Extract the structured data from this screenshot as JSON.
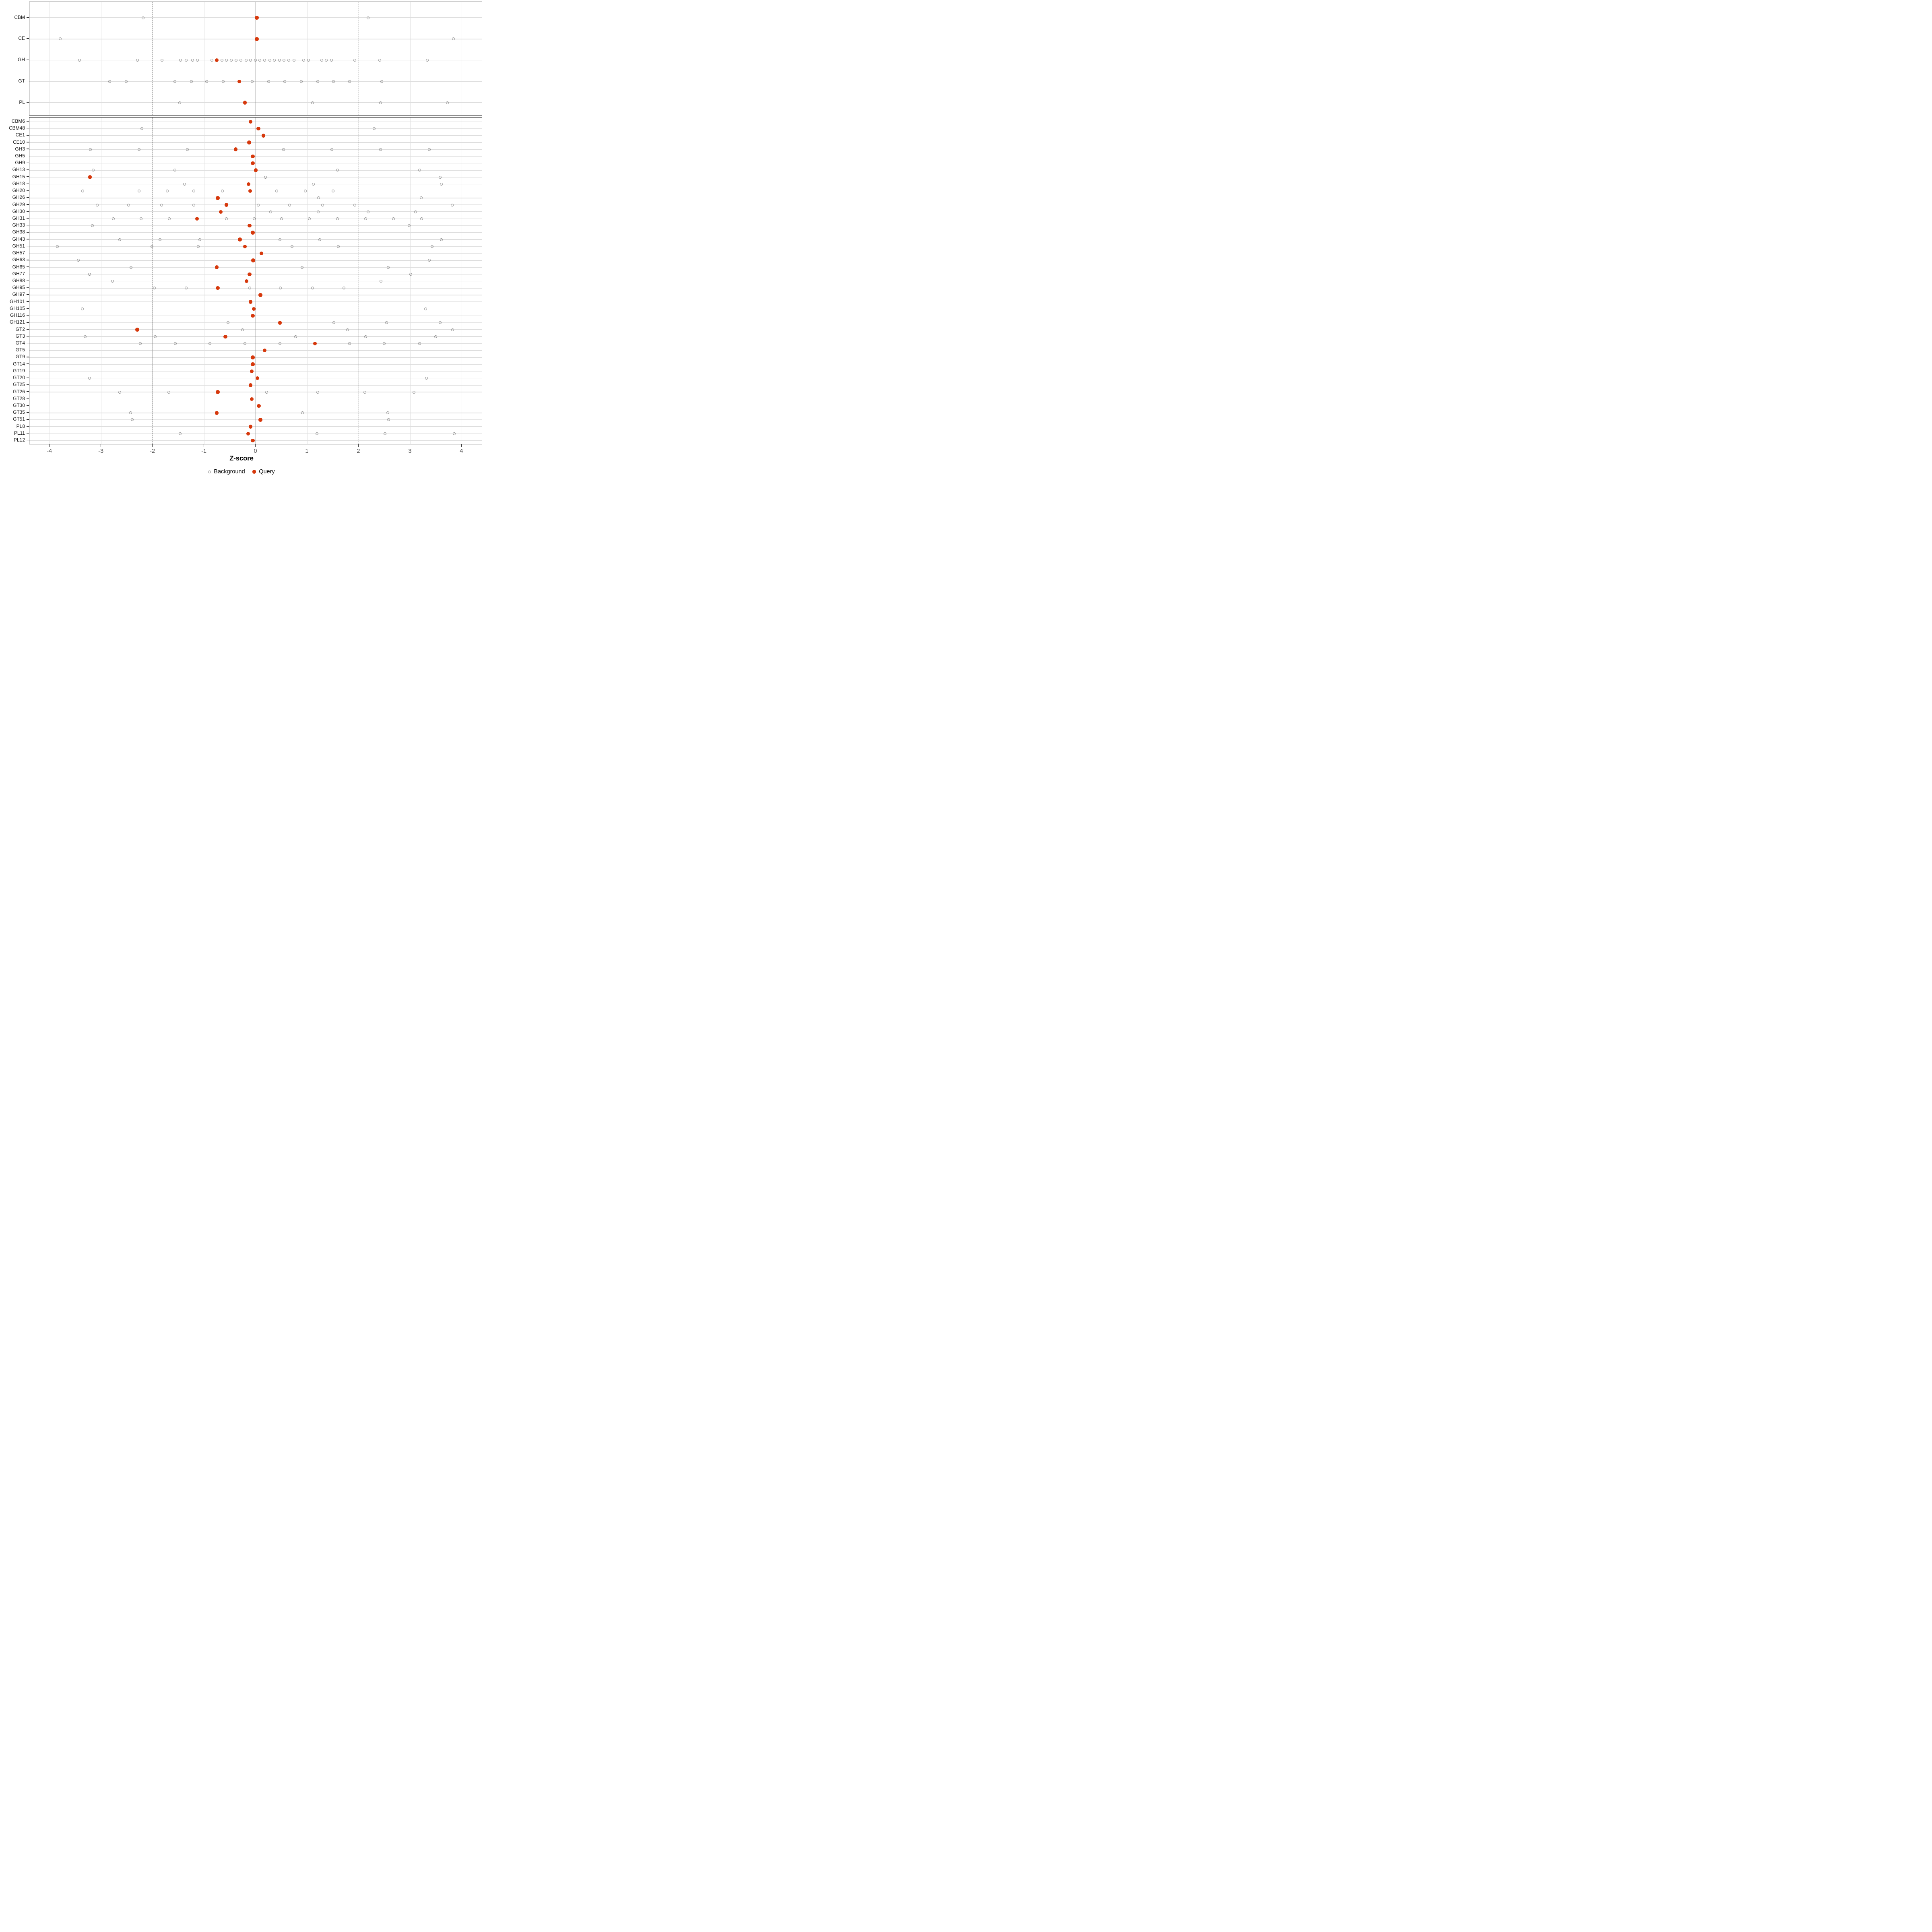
{
  "colors": {
    "query": "#D6390D",
    "background_stroke": "#8F8F8F",
    "grid_major": "#E3E3E3",
    "row_line": "#DEDEDE",
    "zero_line": "#7A7A7A",
    "dashed_line": "#4D4D4D",
    "axis_text": "#4D4D4D",
    "panel_border": "#2F2F2F"
  },
  "legend": {
    "background_label": "Background",
    "query_label": "Query"
  },
  "chart_data": {
    "type": "scatter",
    "xlabel": "Z-score",
    "xlim": [
      -4.4,
      4.4
    ],
    "x_ticks": [
      -4,
      -3,
      -2,
      -1,
      0,
      1,
      2,
      3,
      4
    ],
    "zero_line": 0,
    "dashed_lines": [
      -2,
      2
    ],
    "grid": true,
    "legend_position": "bottom",
    "panels": [
      {
        "name": "families",
        "rows": [
          {
            "label": "CBM",
            "query": 0.02,
            "background": [
              -2.19,
              2.18
            ]
          },
          {
            "label": "CE",
            "query": 0.02,
            "background": [
              -3.8,
              3.84
            ]
          },
          {
            "label": "GH",
            "query": -0.76,
            "background": [
              -3.42,
              -2.3,
              -1.82,
              -1.46,
              -1.35,
              -1.23,
              -1.13,
              -0.85,
              -0.66,
              -0.57,
              -0.48,
              -0.38,
              -0.29,
              -0.19,
              -0.1,
              -0.01,
              0.08,
              0.17,
              0.27,
              0.36,
              0.46,
              0.55,
              0.64,
              0.74,
              0.93,
              1.02,
              1.28,
              1.37,
              1.47,
              1.92,
              2.41,
              3.33
            ]
          },
          {
            "label": "GT",
            "query": -0.32,
            "background": [
              -2.84,
              -2.52,
              -1.57,
              -1.25,
              -0.95,
              -0.63,
              -0.07,
              0.25,
              0.56,
              0.88,
              1.2,
              1.51,
              1.82,
              2.45
            ]
          },
          {
            "label": "PL",
            "query": -0.21,
            "background": [
              -1.48,
              1.1,
              2.42,
              3.72
            ]
          }
        ]
      },
      {
        "name": "subfamilies",
        "rows": [
          {
            "label": "CBM6",
            "query": -0.1,
            "background": []
          },
          {
            "label": "CBM48",
            "query": 0.05,
            "background": [
              -2.21,
              2.3
            ]
          },
          {
            "label": "CE1",
            "query": 0.15,
            "background": []
          },
          {
            "label": "CE10",
            "query": -0.13,
            "background": []
          },
          {
            "label": "GH3",
            "query": -0.39,
            "background": [
              -3.21,
              -2.27,
              -1.33,
              0.54,
              1.48,
              2.42,
              3.37
            ]
          },
          {
            "label": "GH5",
            "query": -0.06,
            "background": []
          },
          {
            "label": "GH9",
            "query": -0.06,
            "background": []
          },
          {
            "label": "GH13",
            "query": 0.0,
            "background": [
              -3.16,
              -1.57,
              1.59,
              3.18
            ]
          },
          {
            "label": "GH15",
            "query": -3.22,
            "background": [
              0.19,
              3.58
            ]
          },
          {
            "label": "GH18",
            "query": -0.14,
            "background": [
              -1.38,
              1.12,
              3.6
            ]
          },
          {
            "label": "GH20",
            "query": -0.11,
            "background": [
              -3.36,
              -2.27,
              -1.72,
              -1.2,
              -0.65,
              0.41,
              0.96,
              1.5
            ]
          },
          {
            "label": "GH26",
            "query": -0.74,
            "background": [
              1.22,
              3.21
            ]
          },
          {
            "label": "GH29",
            "query": -0.57,
            "background": [
              -3.08,
              -2.47,
              -1.83,
              -1.2,
              0.05,
              0.66,
              1.3,
              1.92,
              3.81
            ]
          },
          {
            "label": "GH30",
            "query": -0.68,
            "background": [
              0.29,
              1.21,
              2.18,
              3.1
            ]
          },
          {
            "label": "GH31",
            "query": -1.14,
            "background": [
              -2.77,
              -2.23,
              -1.68,
              -0.57,
              -0.03,
              0.5,
              1.04,
              1.59,
              2.13,
              2.67,
              3.22
            ]
          },
          {
            "label": "GH33",
            "query": -0.12,
            "background": [
              -3.17,
              2.98
            ]
          },
          {
            "label": "GH38",
            "query": -0.06,
            "background": []
          },
          {
            "label": "GH43",
            "query": -0.31,
            "background": [
              -2.64,
              -1.86,
              -1.09,
              0.47,
              1.24,
              3.6
            ]
          },
          {
            "label": "GH51",
            "query": -0.21,
            "background": [
              -3.85,
              -2.02,
              -1.12,
              0.7,
              1.6,
              3.42
            ]
          },
          {
            "label": "GH57",
            "query": 0.11,
            "background": []
          },
          {
            "label": "GH63",
            "query": -0.05,
            "background": [
              -3.45,
              3.37
            ]
          },
          {
            "label": "GH65",
            "query": -0.76,
            "background": [
              -2.42,
              0.9,
              2.57
            ]
          },
          {
            "label": "GH77",
            "query": -0.12,
            "background": [
              -3.23,
              3.01
            ]
          },
          {
            "label": "GH88",
            "query": -0.18,
            "background": [
              -2.78,
              2.43
            ]
          },
          {
            "label": "GH95",
            "query": -0.74,
            "background": [
              -1.97,
              -1.35,
              -0.12,
              0.48,
              1.1,
              1.71
            ]
          },
          {
            "label": "GH97",
            "query": 0.09,
            "background": []
          },
          {
            "label": "GH101",
            "query": -0.1,
            "background": []
          },
          {
            "label": "GH105",
            "query": -0.04,
            "background": [
              -3.37,
              3.3
            ]
          },
          {
            "label": "GH116",
            "query": -0.06,
            "background": []
          },
          {
            "label": "GH121",
            "query": 0.47,
            "background": [
              -0.54,
              1.52,
              2.54,
              3.58
            ]
          },
          {
            "label": "GT2",
            "query": -2.3,
            "background": [
              -0.26,
              1.78,
              3.82
            ]
          },
          {
            "label": "GT3",
            "query": -0.59,
            "background": [
              -3.31,
              -1.95,
              0.77,
              2.13,
              3.49
            ]
          },
          {
            "label": "GT4",
            "query": 1.15,
            "background": [
              -2.24,
              -1.56,
              -0.89,
              -0.21,
              0.47,
              1.82,
              2.49,
              3.18
            ]
          },
          {
            "label": "GT5",
            "query": 0.17,
            "background": []
          },
          {
            "label": "GT9",
            "query": -0.06,
            "background": []
          },
          {
            "label": "GT14",
            "query": -0.06,
            "background": []
          },
          {
            "label": "GT19",
            "query": -0.08,
            "background": []
          },
          {
            "label": "GT20",
            "query": 0.03,
            "background": [
              -3.23,
              3.31
            ]
          },
          {
            "label": "GT25",
            "query": -0.1,
            "background": []
          },
          {
            "label": "GT26",
            "query": -0.74,
            "background": [
              -2.64,
              -1.69,
              0.21,
              1.2,
              2.12,
              3.07
            ]
          },
          {
            "label": "GT28",
            "query": -0.08,
            "background": []
          },
          {
            "label": "GT30",
            "query": 0.06,
            "background": []
          },
          {
            "label": "GT35",
            "query": -0.76,
            "background": [
              -2.43,
              0.91,
              2.56
            ]
          },
          {
            "label": "GT51",
            "query": 0.09,
            "background": [
              -2.4,
              2.58
            ]
          },
          {
            "label": "PL8",
            "query": -0.1,
            "background": []
          },
          {
            "label": "PL11",
            "query": -0.15,
            "background": [
              -1.47,
              1.19,
              2.51,
              3.85
            ]
          },
          {
            "label": "PL12",
            "query": -0.06,
            "background": []
          }
        ]
      }
    ]
  }
}
